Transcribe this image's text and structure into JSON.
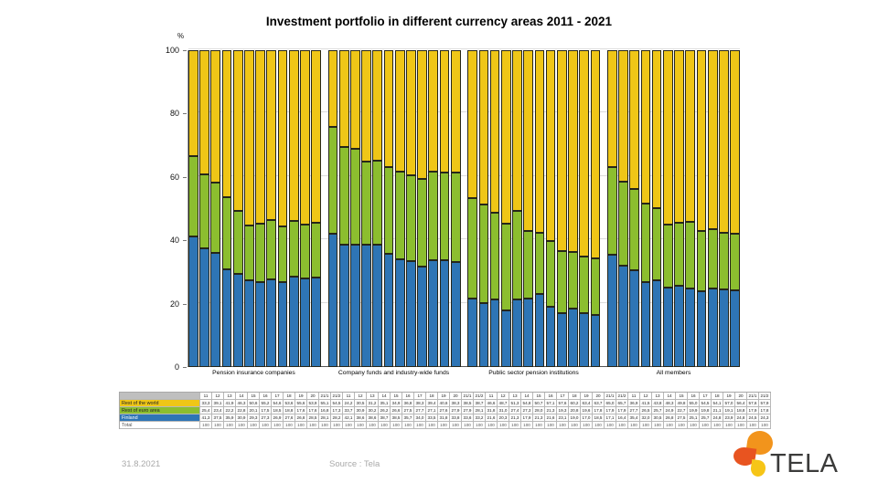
{
  "title": "Investment portfolio in different currency areas 2011 - 2021",
  "footer": {
    "date": "31.8.2021",
    "source": "Source : Tela"
  },
  "logo": {
    "text": "TELA"
  },
  "colors": {
    "rest_of_world": "#efc617",
    "rest_of_euro_area": "#8cbe2f",
    "finland": "#2e75b5",
    "bar_border": "#26261a",
    "gridline": "#dcdcdc",
    "footer_text": "#a9a9a9",
    "logo_orange": "#f2941c",
    "logo_red": "#e85420",
    "logo_yellow": "#f6c517"
  },
  "chart_data": {
    "type": "bar",
    "stacked": true,
    "title": "Investment portfolio in different currency areas 2011 - 2021",
    "xlabel": "",
    "ylabel": "%",
    "ylim": [
      0,
      100
    ],
    "yticks": [
      0,
      20,
      40,
      60,
      80,
      100
    ],
    "grid": true,
    "legend_position": "table-left",
    "columns": [
      "11",
      "12",
      "13",
      "14",
      "15",
      "16",
      "17",
      "18",
      "19",
      "20",
      "21/1",
      "21/2"
    ],
    "series_labels": {
      "rest_of_world": "Rest of the world",
      "rest_of_euro_area": "Rest of euro area",
      "finland": "Finland",
      "total": "Total"
    },
    "stack_order_bottom_to_top": [
      "finland",
      "rest_of_euro_area",
      "rest_of_world"
    ],
    "groups": [
      {
        "label": "Pension insurance companies",
        "rest_of_world": [
          33.3,
          39.1,
          41.9,
          46.3,
          50.6,
          55.2,
          54.6,
          53.6,
          55.6,
          53.9,
          55.1,
          54.5
        ],
        "rest_of_euro_area": [
          25.4,
          23.4,
          22.2,
          22.8,
          20.1,
          17.5,
          18.5,
          18.8,
          17.6,
          17.6,
          16.8,
          17.3
        ],
        "finland": [
          41.3,
          37.5,
          35.9,
          30.9,
          29.3,
          27.3,
          26.9,
          27.6,
          26.8,
          28.5,
          28.1,
          28.2
        ],
        "total": [
          100,
          100,
          100,
          100,
          100,
          100,
          100,
          100,
          100,
          100,
          100,
          100
        ]
      },
      {
        "label": "Company funds and industry-wide funds",
        "rest_of_world": [
          24.2,
          30.5,
          31.2,
          35.1,
          34.9,
          36.8,
          38.3,
          39.4,
          40.6,
          38.3,
          38.5,
          38.7
        ],
        "rest_of_euro_area": [
          33.7,
          30.9,
          30.2,
          26.2,
          26.6,
          27.5,
          27.7,
          27.1,
          27.6,
          27.9,
          27.9,
          28.1
        ],
        "finland": [
          42.1,
          38.6,
          38.6,
          38.7,
          38.5,
          35.7,
          34.0,
          33.5,
          31.8,
          33.8,
          33.6,
          33.2
        ],
        "total": [
          100,
          100,
          100,
          100,
          100,
          100,
          100,
          100,
          100,
          100,
          100,
          100
        ]
      },
      {
        "label": "Public sector pension institutions",
        "rest_of_world": [
          46.6,
          48.7,
          51.3,
          54.8,
          50.7,
          57.1,
          57.6,
          60.2,
          63.4,
          63.7,
          65.0,
          65.7
        ],
        "rest_of_euro_area": [
          31.8,
          31.0,
          27.4,
          27.3,
          28.0,
          21.3,
          19.3,
          20.8,
          19.6,
          17.8,
          17.9,
          17.9
        ],
        "finland": [
          21.6,
          20.3,
          21.3,
          17.9,
          21.3,
          21.6,
          23.1,
          19.0,
          17.0,
          18.5,
          17.1,
          16.4
        ],
        "total": [
          100,
          100,
          100,
          100,
          100,
          100,
          100,
          100,
          100,
          100,
          100,
          100
        ]
      },
      {
        "label": "All members",
        "rest_of_world": [
          36.9,
          41.5,
          43.8,
          48.3,
          49.8,
          55.0,
          54.5,
          54.1,
          57.0,
          56.4,
          57.6,
          57.9
        ],
        "rest_of_euro_area": [
          27.7,
          26.5,
          25.7,
          24.9,
          22.7,
          19.9,
          19.8,
          21.1,
          19.1,
          18.8,
          17.9,
          17.8
        ],
        "finland": [
          35.4,
          32.0,
          30.5,
          26.8,
          27.5,
          25.1,
          25.7,
          24.8,
          23.9,
          24.8,
          24.5,
          24.3
        ],
        "total": [
          100,
          100,
          100,
          100,
          100,
          100,
          100,
          100,
          100,
          100,
          100,
          100
        ]
      }
    ]
  }
}
